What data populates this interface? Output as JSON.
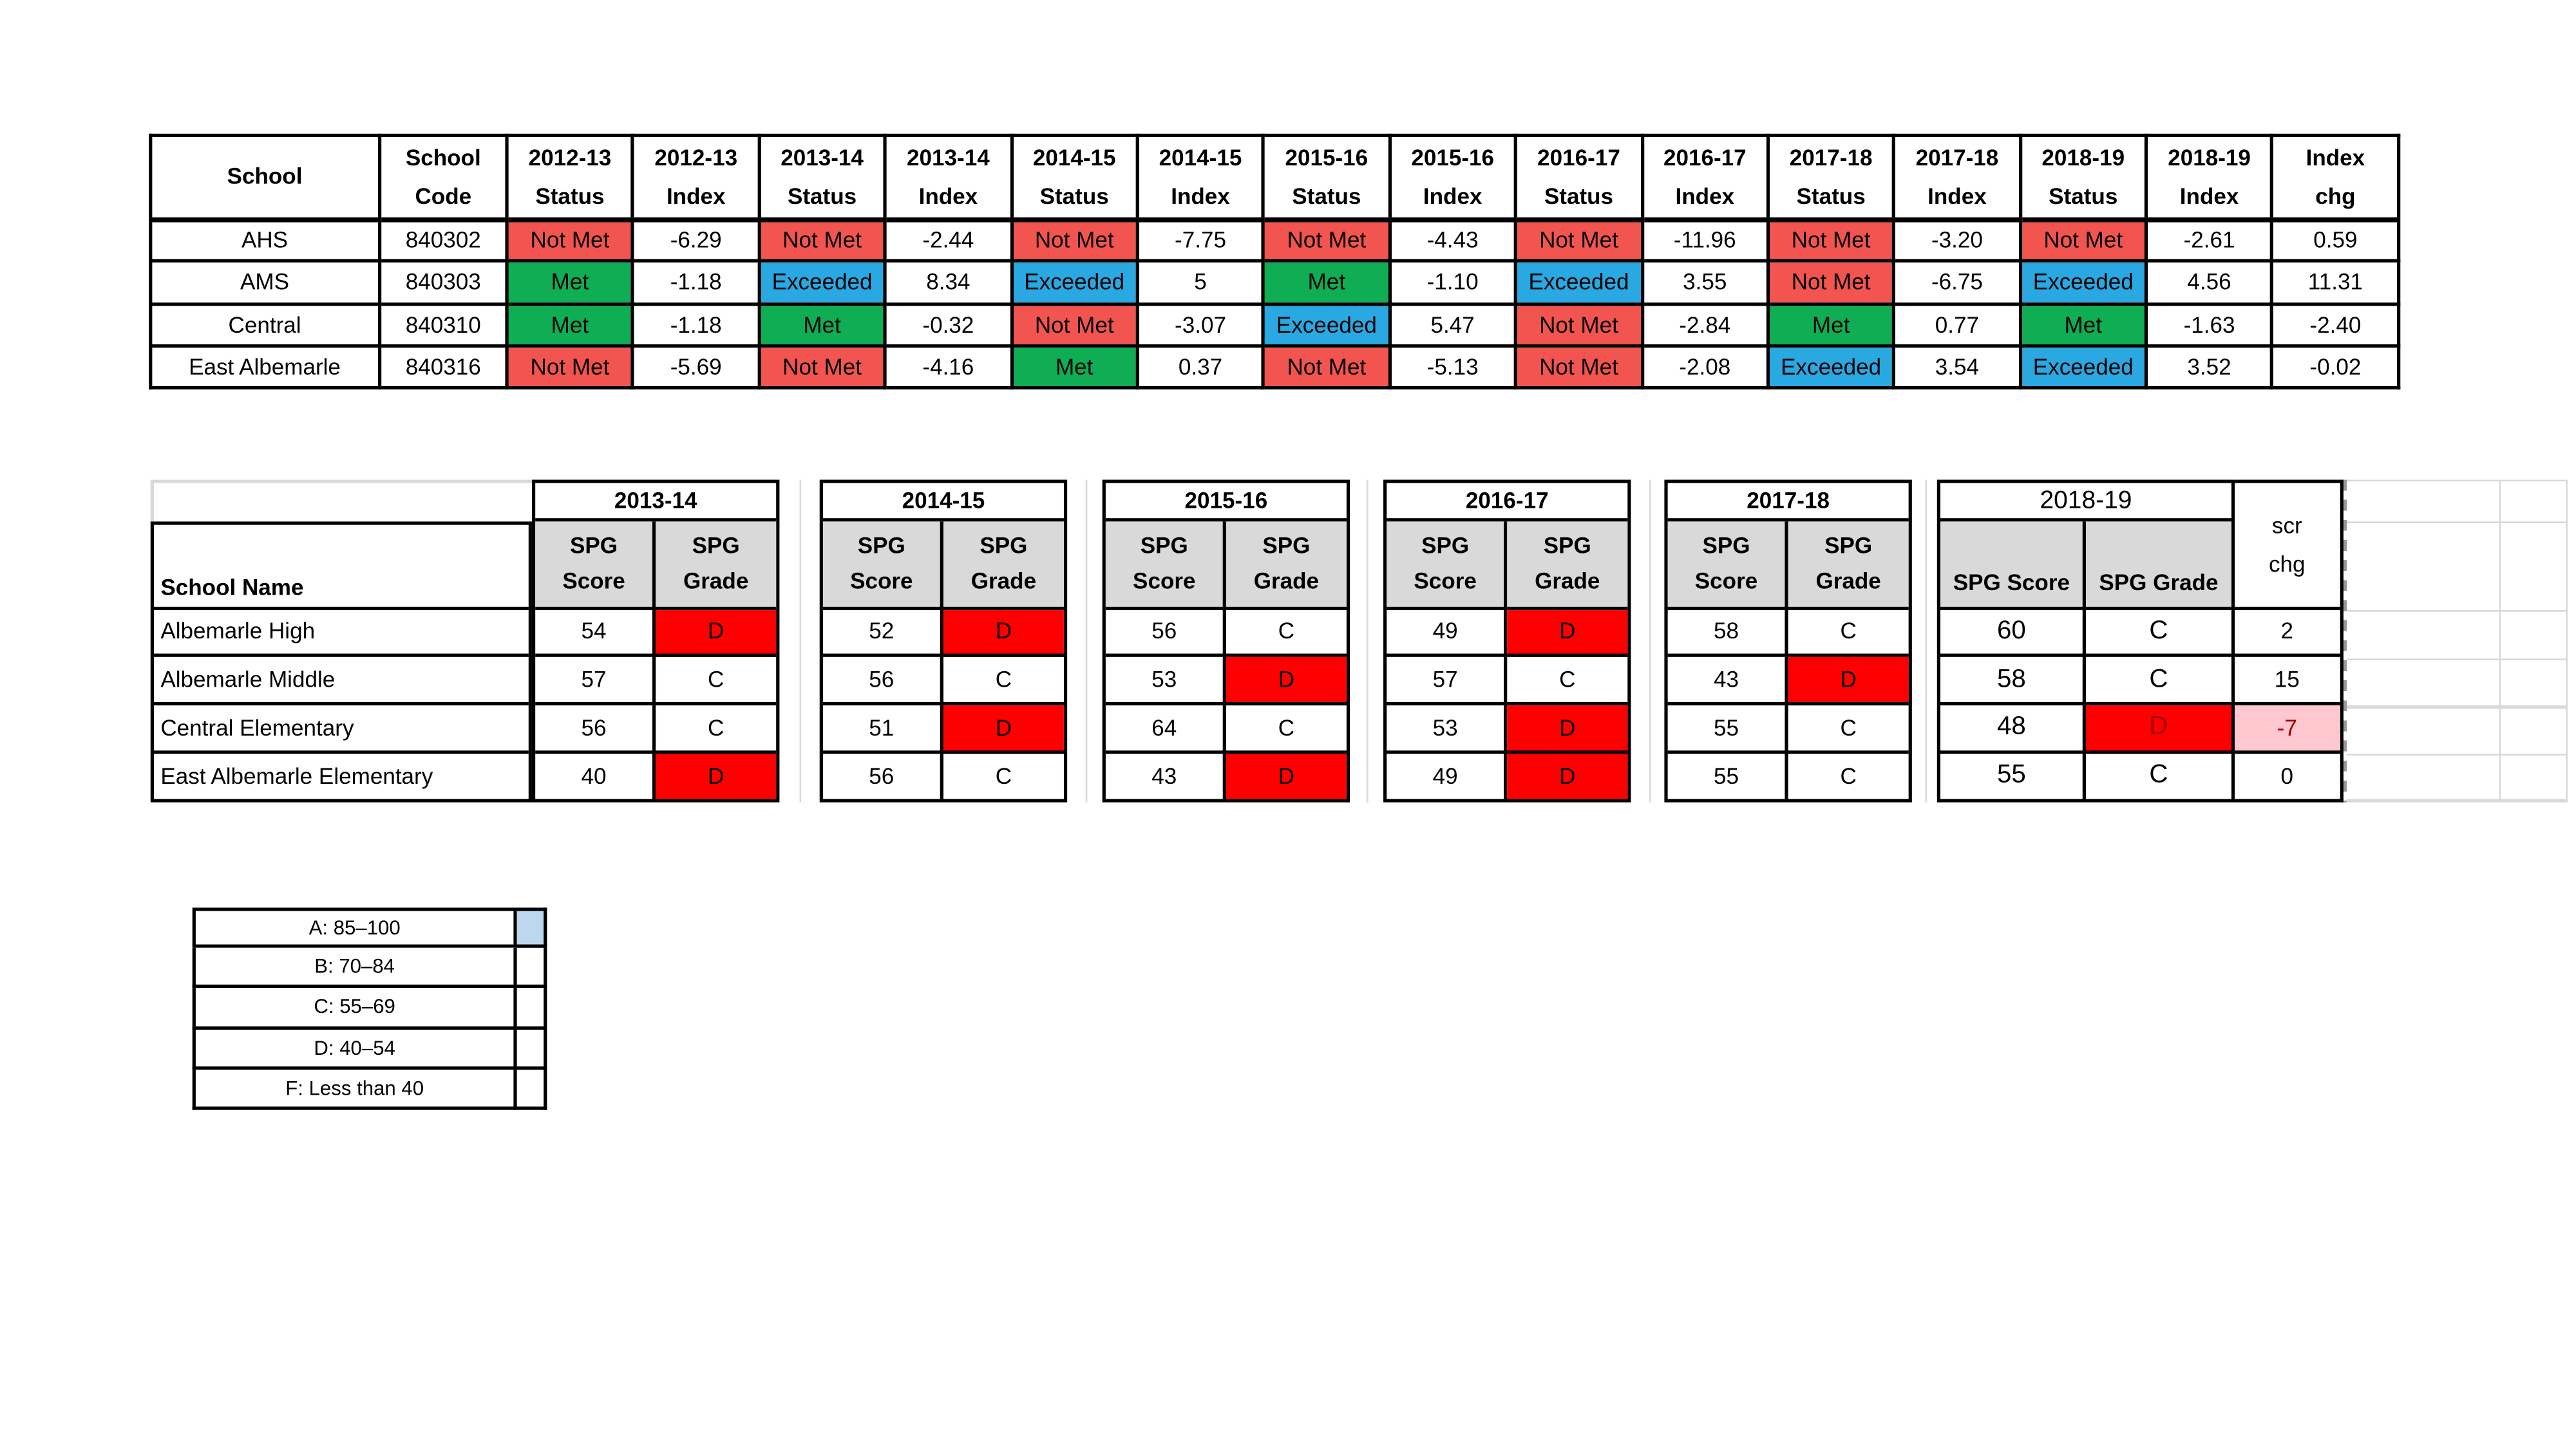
{
  "colors": {
    "status_red": "#F2554F",
    "status_green": "#0FAD54",
    "status_blue": "#29A8E2",
    "grade_red": "#FF0000",
    "bad_pink": "#FFC7CE",
    "bad_text": "#9C0006",
    "header_gray": "#D9D9D9",
    "swatch_blue": "#BDD7EE",
    "triangle_green": "#1E7E34"
  },
  "status_table": {
    "header": {
      "school": "School",
      "code": [
        "School",
        "Code"
      ],
      "years": [
        "2012-13",
        "2013-14",
        "2014-15",
        "2015-16",
        "2016-17",
        "2017-18",
        "2018-19"
      ],
      "status_word": "Status",
      "index_word": "Index",
      "chg": [
        "Index",
        "chg"
      ]
    },
    "rows": [
      {
        "school": "AHS",
        "code": "840302",
        "pairs": [
          [
            "Not Met",
            "-6.29"
          ],
          [
            "Not Met",
            "-2.44"
          ],
          [
            "Not Met",
            "-7.75"
          ],
          [
            "Not Met",
            "-4.43"
          ],
          [
            "Not Met",
            "-11.96"
          ],
          [
            "Not Met",
            "-3.20"
          ],
          [
            "Not Met",
            "-2.61"
          ]
        ],
        "chg": "0.59"
      },
      {
        "school": "AMS",
        "code": "840303",
        "pairs": [
          [
            "Met",
            "-1.18"
          ],
          [
            "Exceeded",
            "8.34"
          ],
          [
            "Exceeded",
            "5"
          ],
          [
            "Met",
            "-1.10"
          ],
          [
            "Exceeded",
            "3.55"
          ],
          [
            "Not Met",
            "-6.75"
          ],
          [
            "Exceeded",
            "4.56"
          ]
        ],
        "chg": "11.31"
      },
      {
        "school": "Central",
        "code": "840310",
        "pairs": [
          [
            "Met",
            "-1.18"
          ],
          [
            "Met",
            "-0.32"
          ],
          [
            "Not Met",
            "-3.07"
          ],
          [
            "Exceeded",
            "5.47"
          ],
          [
            "Not Met",
            "-2.84"
          ],
          [
            "Met",
            "0.77"
          ],
          [
            "Met",
            "-1.63"
          ]
        ],
        "chg": "-2.40"
      },
      {
        "school": "East Albemarle",
        "code": "840316",
        "pairs": [
          [
            "Not Met",
            "-5.69"
          ],
          [
            "Not Met",
            "-4.16"
          ],
          [
            "Met",
            "0.37"
          ],
          [
            "Not Met",
            "-5.13"
          ],
          [
            "Not Met",
            "-2.08"
          ],
          [
            "Exceeded",
            "3.54"
          ],
          [
            "Exceeded",
            "3.52"
          ]
        ],
        "chg": "-0.02"
      }
    ]
  },
  "spg_table": {
    "school_name_label": "School Name",
    "years": [
      "2013-14",
      "2014-15",
      "2015-16",
      "2016-17",
      "2017-18"
    ],
    "year_wide": "2018-19",
    "spg": "SPG",
    "score": "Score",
    "grade": "Grade",
    "score_wide": "SPG Score",
    "grade_wide": "SPG Grade",
    "scr": [
      "scr",
      "chg"
    ],
    "rows": [
      {
        "name": "Albemarle High",
        "scores": [
          [
            "54",
            "D"
          ],
          [
            "52",
            "D"
          ],
          [
            "56",
            "C"
          ],
          [
            "49",
            "D"
          ],
          [
            "58",
            "C"
          ]
        ],
        "wide": [
          "60",
          "C"
        ],
        "chg": "2",
        "flag": false,
        "chg_bad": false
      },
      {
        "name": "Albemarle Middle",
        "scores": [
          [
            "57",
            "C"
          ],
          [
            "56",
            "C"
          ],
          [
            "53",
            "D"
          ],
          [
            "57",
            "C"
          ],
          [
            "43",
            "D"
          ]
        ],
        "wide": [
          "58",
          "C"
        ],
        "chg": "15",
        "flag": true,
        "chg_bad": false
      },
      {
        "name": "Central Elementary",
        "scores": [
          [
            "56",
            "C"
          ],
          [
            "51",
            "D"
          ],
          [
            "64",
            "C"
          ],
          [
            "53",
            "D"
          ],
          [
            "55",
            "C"
          ]
        ],
        "wide": [
          "48",
          "D"
        ],
        "chg": "-7",
        "flag": true,
        "chg_bad": true
      },
      {
        "name": "East Albemarle Elementary",
        "scores": [
          [
            "40",
            "D"
          ],
          [
            "56",
            "C"
          ],
          [
            "43",
            "D"
          ],
          [
            "49",
            "D"
          ],
          [
            "55",
            "C"
          ]
        ],
        "wide": [
          "55",
          "C"
        ],
        "chg": "0",
        "flag": true,
        "chg_bad": false
      }
    ]
  },
  "legend": {
    "rows": [
      {
        "label": "A: 85–100",
        "swatch": true
      },
      {
        "label": "B: 70–84",
        "swatch": false
      },
      {
        "label": "C: 55–69",
        "swatch": false
      },
      {
        "label": "D: 40–54",
        "swatch": false
      },
      {
        "label": "F: Less than 40",
        "swatch": false
      }
    ]
  }
}
